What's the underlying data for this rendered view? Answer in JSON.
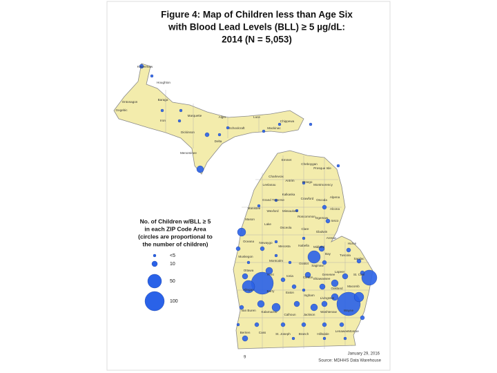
{
  "title": {
    "lines": [
      "Figure 4:  Map of Children less than Age Six",
      "with Blood Lead Levels (BLL) ≥ 5 µg/dL:",
      "2014  (N = 5,053)"
    ]
  },
  "legend": {
    "title": {
      "lines": [
        "No. of Children w/BLL ≥ 5",
        "in each ZIP Code Area",
        "(circles are proportional to",
        "the number of children)"
      ]
    },
    "items": [
      {
        "label": "<5"
      },
      {
        "label": "10"
      },
      {
        "label": "50"
      },
      {
        "label": "100"
      }
    ]
  },
  "counties": [
    "Keweenaw",
    "Houghton",
    "Ontonagon",
    "Gogebic",
    "Baraga",
    "Iron",
    "Marquette",
    "Alger",
    "Schoolcraft",
    "Luce",
    "Chippewa",
    "Mackinac",
    "Delta",
    "Dickinson",
    "Menominee",
    "Emmet",
    "Cheboygan",
    "Presque Isle",
    "Charlevoix",
    "Antrim",
    "Otsego",
    "Montmorency",
    "Alpena",
    "Leelanau",
    "Kalkaska",
    "Crawford",
    "Oscoda",
    "Alcona",
    "Grand Traverse",
    "Manistee",
    "Wexford",
    "Missaukee",
    "Roscommon",
    "Ogemaw",
    "Iosco",
    "Mason",
    "Lake",
    "Osceola",
    "Clare",
    "Gladwin",
    "Arenac",
    "Huron",
    "Oceana",
    "Newaygo",
    "Mecosta",
    "Isabella",
    "Midland",
    "Bay",
    "Tuscola",
    "Sanilac",
    "Muskegon",
    "Montcalm",
    "Gratiot",
    "Saginaw",
    "Genesee",
    "Lapeer",
    "St. Clair",
    "Ottawa",
    "Kent",
    "Ionia",
    "Clinton",
    "Shiawassee",
    "Oakland",
    "Macomb",
    "Allegan",
    "Barry",
    "Eaton",
    "Ingham",
    "Livingston",
    "Van Buren",
    "Kalamazoo",
    "Calhoun",
    "Jackson",
    "Washtenaw",
    "Wayne",
    "Berrien",
    "Cass",
    "St. Joseph",
    "Branch",
    "Hillsdale",
    "Lenawee",
    "Monroe"
  ],
  "footer": {
    "page": "9",
    "date": "January 29, 2016",
    "source": "Source: MDHHS Data Warehouse"
  }
}
